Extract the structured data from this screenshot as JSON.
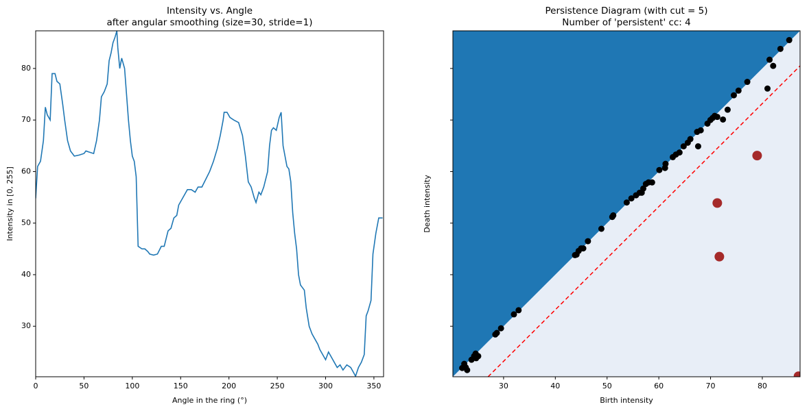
{
  "chart_data": [
    {
      "type": "line",
      "title": "Intensity vs. Angle",
      "subtitle": "after angular smoothing (size=30, stride=1)",
      "x_label": "Angle in the ring (°)",
      "y_label": "Intensity in [0, 255]",
      "xlim": [
        0,
        360
      ],
      "ylim": [
        20.2,
        87.3
      ],
      "xticks": [
        0,
        50,
        100,
        150,
        200,
        250,
        300,
        350
      ],
      "yticks": [
        30,
        40,
        50,
        60,
        70,
        80
      ],
      "color": "#1f77b4",
      "x": [
        0,
        2,
        5,
        8,
        10,
        12,
        15,
        17,
        20,
        22,
        25,
        28,
        30,
        33,
        36,
        40,
        45,
        50,
        52,
        55,
        60,
        63,
        66,
        68,
        71,
        74,
        76,
        78,
        80,
        82,
        84,
        85,
        87,
        89,
        92,
        94,
        96,
        98,
        100,
        102,
        104,
        106,
        110,
        113,
        116,
        118,
        122,
        126,
        130,
        133,
        137,
        140,
        143,
        146,
        148,
        151,
        154,
        157,
        161,
        165,
        168,
        172,
        176,
        180,
        184,
        188,
        191,
        194,
        195,
        198,
        201,
        205,
        210,
        214,
        217,
        220,
        223,
        226,
        228,
        231,
        233,
        236,
        240,
        242,
        244,
        246,
        249,
        252,
        254,
        256,
        258,
        260,
        262,
        264,
        266,
        268,
        270,
        272,
        274,
        276,
        278,
        280,
        283,
        286,
        289,
        292,
        294,
        297,
        300,
        303,
        306,
        309,
        312,
        315,
        318,
        322,
        326,
        329,
        331,
        334,
        337,
        340,
        342,
        344,
        347,
        349,
        352,
        355,
        359
      ],
      "values": [
        54.8,
        61,
        62,
        66,
        72.5,
        71,
        70,
        79,
        79,
        77.5,
        77,
        73,
        70,
        66,
        64,
        63,
        63.2,
        63.5,
        64,
        63.8,
        63.5,
        66,
        70,
        74.5,
        75.5,
        77,
        81.5,
        83,
        85,
        86,
        87.3,
        84,
        80,
        82,
        80,
        75,
        70,
        66,
        63,
        62,
        59,
        45.5,
        45,
        45,
        44.5,
        44,
        43.8,
        44,
        45.5,
        45.5,
        48.5,
        49,
        51,
        51.5,
        53.5,
        54.5,
        55.5,
        56.5,
        56.5,
        56,
        57,
        57,
        58.5,
        60,
        62,
        64.5,
        67,
        70,
        71.5,
        71.5,
        70.5,
        70,
        69.5,
        67,
        63,
        58,
        57,
        55,
        54,
        56,
        55.5,
        57,
        60,
        65,
        68,
        68.5,
        68,
        70.5,
        71.5,
        65,
        63,
        61,
        60.5,
        58,
        52,
        48,
        45,
        40,
        38,
        37.5,
        37,
        33.5,
        30,
        28.5,
        27.5,
        26.5,
        25.5,
        24.5,
        23.5,
        25,
        24,
        23,
        22,
        22.5,
        21.5,
        22.5,
        22,
        21,
        20.3,
        22,
        23,
        24.5,
        32,
        33,
        35,
        44,
        48,
        51,
        51
      ]
    },
    {
      "type": "scatter",
      "title": "Persistence Diagram (with cut = 5)",
      "subtitle": "Number of 'persistent' cc: 4",
      "x_label": "Birth intensity",
      "y_label": "Death intensity",
      "xlim": [
        20.2,
        87.3
      ],
      "ylim": [
        20.2,
        87.3
      ],
      "xticks": [
        30,
        40,
        50,
        60,
        70,
        80
      ],
      "yticks": [
        30,
        40,
        50,
        60,
        70,
        80
      ],
      "ytick_labels": false,
      "upper_fill": "#1f77b4",
      "lower_fill": "#e8eef7",
      "reference_line": {
        "x": [
          27.0,
          87.3
        ],
        "y": [
          20.2,
          80.5
        ],
        "color": "#ff0000",
        "dashed": true
      },
      "series": [
        {
          "color": "#000000",
          "size": 4.5,
          "x": [
            22.0,
            22.7,
            22.4,
            22.96,
            23.8,
            24.3,
            24.6,
            25.1,
            24.7,
            28.4,
            28.7,
            29.5,
            32.0,
            32.9,
            43.8,
            44.1,
            44.5,
            45.0,
            45.4,
            46.3,
            48.9,
            51.0,
            51.2,
            53.8,
            54.7,
            55.6,
            56.3,
            56.7,
            57.0,
            57.5,
            58.0,
            58.7,
            60.1,
            61.2,
            61.3,
            62.7,
            63.3,
            64.0,
            64.8,
            65.6,
            66.1,
            67.4,
            68.1,
            67.6,
            69.4,
            69.97,
            70.4,
            70.8,
            71.3,
            72.4,
            73.3,
            74.5,
            75.4,
            77.1,
            81.0,
            81.4,
            82.1,
            83.5,
            85.2
          ],
          "y": [
            21.9,
            22.0,
            22.7,
            21.5,
            23.5,
            24.2,
            24.7,
            24.2,
            23.8,
            28.4,
            28.7,
            29.6,
            32.3,
            33.1,
            43.8,
            43.9,
            44.6,
            45.1,
            45.1,
            46.5,
            48.9,
            51.2,
            51.5,
            54.0,
            54.8,
            55.4,
            55.9,
            55.9,
            56.7,
            57.6,
            57.9,
            57.9,
            60.3,
            60.7,
            61.5,
            62.8,
            63.3,
            63.7,
            64.9,
            65.6,
            66.3,
            67.7,
            68.0,
            64.9,
            69.3,
            70.0,
            70.4,
            70.8,
            70.6,
            70.1,
            72.0,
            74.8,
            75.7,
            77.4,
            76.1,
            81.7,
            80.5,
            83.8,
            85.5
          ]
        },
        {
          "color": "#a52a2a",
          "size": 7,
          "x": [
            79.0,
            71.3,
            71.7,
            87.0
          ],
          "y": [
            63.1,
            53.9,
            43.5,
            20.3
          ]
        }
      ]
    }
  ]
}
